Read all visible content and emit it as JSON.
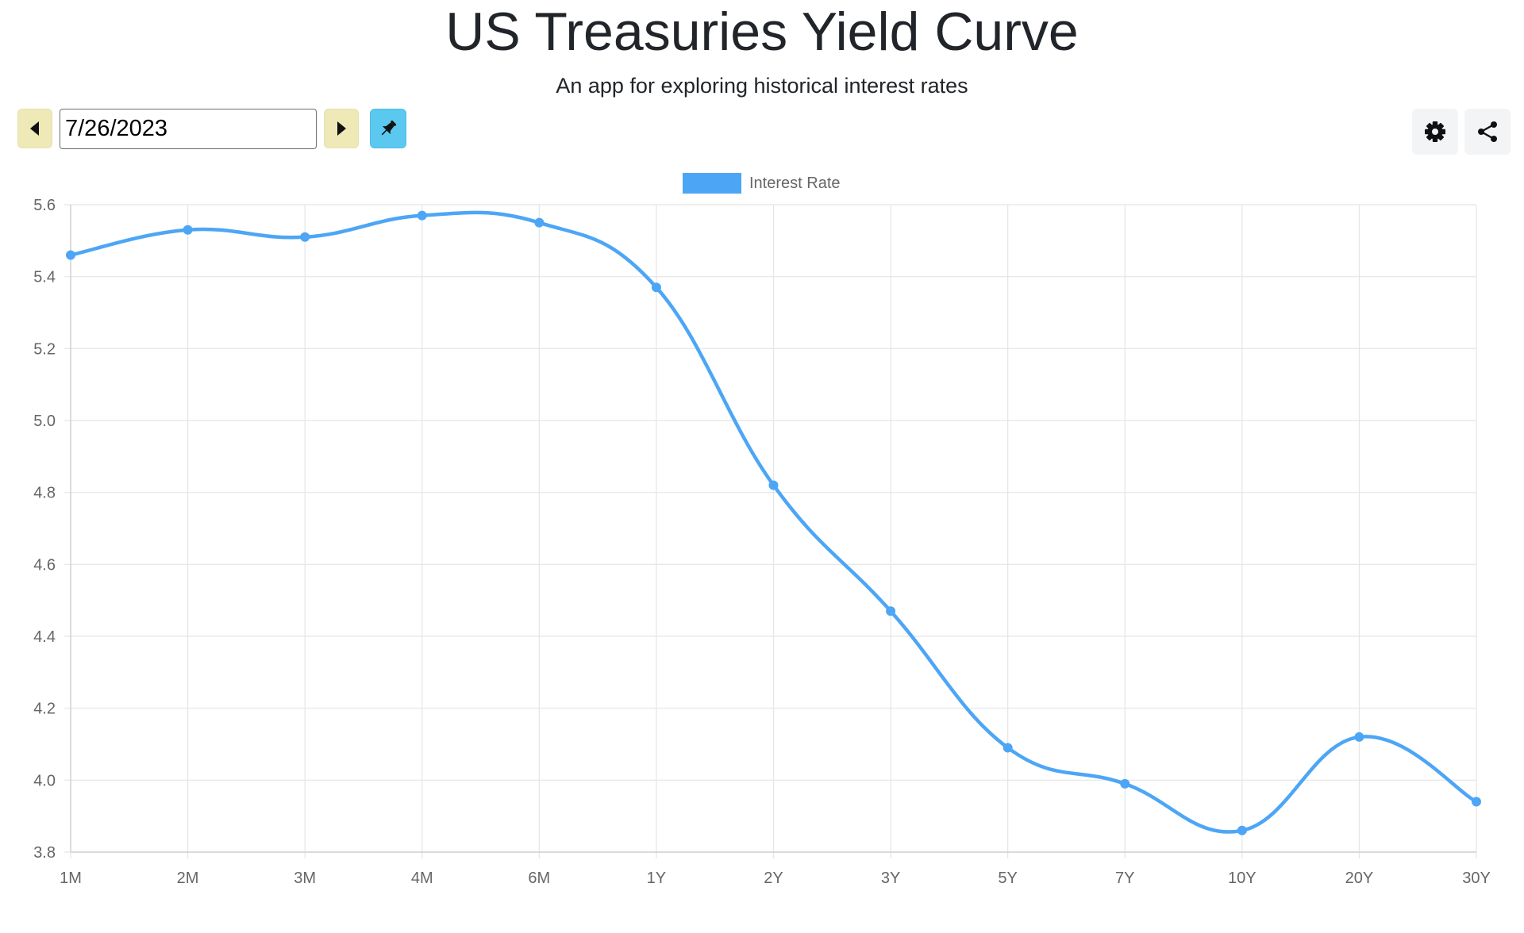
{
  "header": {
    "title": "US Treasuries Yield Curve",
    "subtitle": "An app for exploring historical interest rates"
  },
  "toolbar": {
    "date_value": "7/26/2023",
    "prev_icon": "caret-left-icon",
    "next_icon": "caret-right-icon",
    "pin_icon": "pushpin-icon",
    "settings_icon": "gear-icon",
    "share_icon": "share-icon"
  },
  "colors": {
    "accent": "#4da6f5",
    "nav_button": "#efe9b8",
    "pin_button": "#5bc8ef",
    "grid": "#e5e5e5",
    "tick_text": "#666666"
  },
  "chart_data": {
    "type": "line",
    "categories": [
      "1M",
      "2M",
      "3M",
      "4M",
      "6M",
      "1Y",
      "2Y",
      "3Y",
      "5Y",
      "7Y",
      "10Y",
      "20Y",
      "30Y"
    ],
    "series": [
      {
        "name": "Interest Rate",
        "values": [
          5.46,
          5.53,
          5.51,
          5.57,
          5.55,
          5.37,
          4.82,
          4.47,
          4.09,
          3.99,
          3.86,
          4.12,
          3.94
        ]
      }
    ],
    "yticks": [
      "5.6",
      "5.4",
      "5.2",
      "5.0",
      "4.8",
      "4.6",
      "4.4",
      "4.2",
      "4.0",
      "3.8"
    ],
    "ylim": [
      3.8,
      5.6
    ],
    "grid": true,
    "legend_position": "top-center",
    "smooth": true
  }
}
